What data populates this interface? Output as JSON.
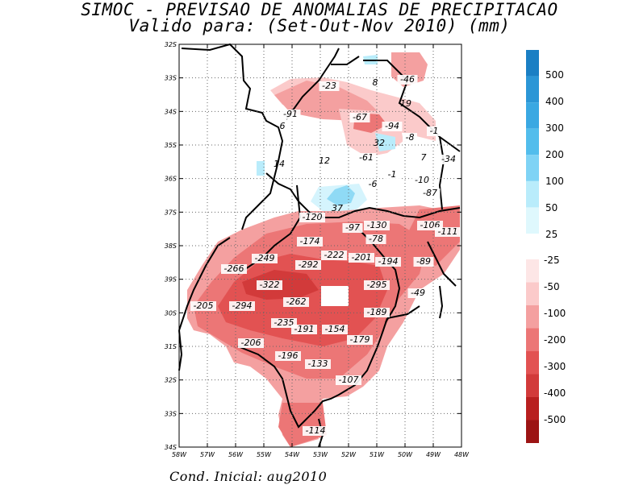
{
  "title_line1": "SIMOC - PREVISAO DE ANOMALIAS DE PRECIPITACAO",
  "title_line2": "Valido para: (Set-Out-Nov 2010) (mm)",
  "footer": "Cond. Inicial: aug2010",
  "lat_labels": [
    "32S",
    "33S",
    "34S",
    "35S",
    "36S",
    "37S",
    "38S",
    "39S",
    "30S",
    "31S",
    "32S",
    "33S",
    "34S"
  ],
  "lon_labels": [
    "58W",
    "57W",
    "56W",
    "55W",
    "54W",
    "53W",
    "52W",
    "51W",
    "50W",
    "49W",
    "48W"
  ],
  "colorbar_positive": {
    "labels": [
      "500",
      "400",
      "300",
      "200",
      "100",
      "50",
      "25"
    ],
    "colors": [
      "#1a7fc4",
      "#2b96d6",
      "#3aa8e2",
      "#52bdec",
      "#7fd3f5",
      "#b9ecfb",
      "#dff8fd"
    ]
  },
  "colorbar_negative": {
    "labels": [
      "-25",
      "-50",
      "-100",
      "-200",
      "-300",
      "-400",
      "-500"
    ],
    "colors": [
      "#fde6e6",
      "#fbcaca",
      "#f4a0a0",
      "#ec7676",
      "#e25252",
      "#d23a3a",
      "#b81f1f",
      "#9c1414"
    ]
  },
  "annotations": [
    {
      "text": "-23"
    },
    {
      "text": "8"
    },
    {
      "text": "-46"
    },
    {
      "text": "19"
    },
    {
      "text": "-91"
    },
    {
      "text": "-67"
    },
    {
      "text": "-94"
    },
    {
      "text": "-1"
    },
    {
      "text": "6"
    },
    {
      "text": "-8"
    },
    {
      "text": "32"
    },
    {
      "text": "7"
    },
    {
      "text": "-34"
    },
    {
      "text": "14"
    },
    {
      "text": "12"
    },
    {
      "text": "-61"
    },
    {
      "text": "-1"
    },
    {
      "text": "-10"
    },
    {
      "text": "-6"
    },
    {
      "text": "-87"
    },
    {
      "text": "37"
    },
    {
      "text": "-120"
    },
    {
      "text": "-130"
    },
    {
      "text": "-106"
    },
    {
      "text": "-97"
    },
    {
      "text": "-111"
    },
    {
      "text": "-78"
    },
    {
      "text": "-174"
    },
    {
      "text": "-249"
    },
    {
      "text": "-222"
    },
    {
      "text": "-201"
    },
    {
      "text": "-194"
    },
    {
      "text": "-89"
    },
    {
      "text": "-266"
    },
    {
      "text": "-292"
    },
    {
      "text": "-322"
    },
    {
      "text": "-295"
    },
    {
      "text": "-49"
    },
    {
      "text": "-205"
    },
    {
      "text": "-294"
    },
    {
      "text": "-262"
    },
    {
      "text": "-189"
    },
    {
      "text": "-235"
    },
    {
      "text": "-191"
    },
    {
      "text": "-154"
    },
    {
      "text": "-206"
    },
    {
      "text": "-179"
    },
    {
      "text": "-196"
    },
    {
      "text": "-133"
    },
    {
      "text": "-107"
    },
    {
      "text": "-114"
    }
  ]
}
